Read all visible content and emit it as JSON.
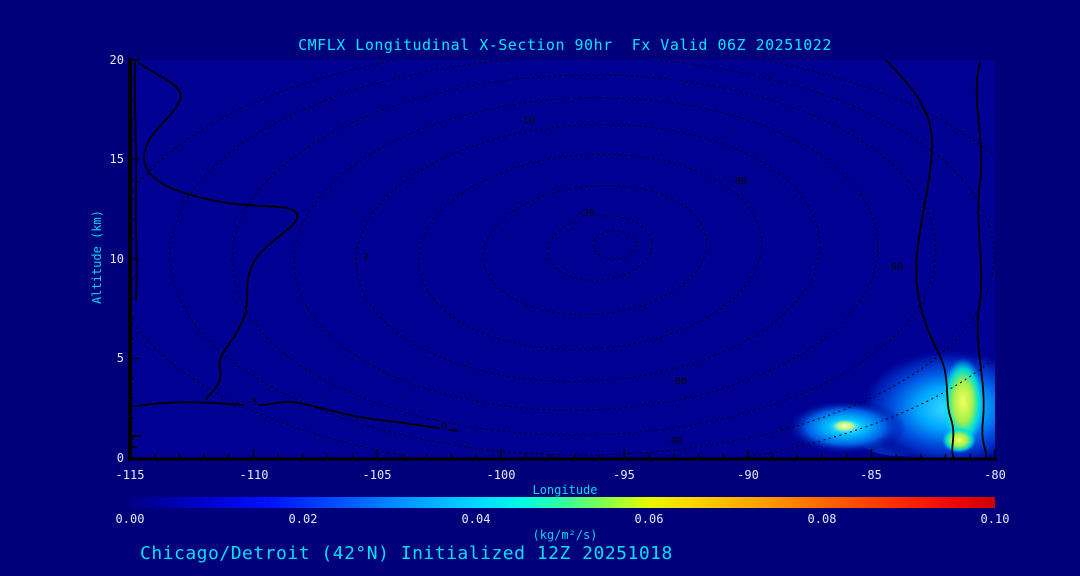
{
  "title": "CMFLX Longitudinal X-Section 90hr  Fx Valid 06Z 20251022",
  "caption": "Chicago/Detroit (42°N) Initialized 12Z 20251018",
  "axes": {
    "y_label": "Altitude (km)",
    "y_ticks": [
      "20",
      "15",
      "10",
      "5",
      "0"
    ],
    "x_label": "Longitude",
    "x_ticks": [
      "-115",
      "-110",
      "-105",
      "-100",
      "-95",
      "-90",
      "-85",
      "-80"
    ]
  },
  "colorbar": {
    "ticks": [
      "0.00",
      "0.02",
      "0.04",
      "0.06",
      "0.08",
      "0.10"
    ],
    "units_label": "(kg/m²/s)"
  },
  "contour_labels": [
    "-10",
    "-80",
    "-30",
    "-90",
    "2",
    "-80",
    "-3",
    "0",
    "-90"
  ],
  "colors": {
    "background": "#00007b",
    "plot_background": "#000092",
    "title_text": "#00e8ff",
    "tick_text": "#e8e8f8",
    "contour_line": "#000000",
    "colorbar_low": "#000085",
    "colorbar_mid": "#00d8ff",
    "colorbar_high": "#d00000"
  },
  "chart_data": {
    "type": "heatmap",
    "title": "CMFLX Longitudinal X-Section 90hr Fx Valid 06Z 20251022",
    "xlabel": "Longitude",
    "ylabel": "Altitude (km)",
    "xlim": [
      -115,
      -80
    ],
    "ylim": [
      0,
      20
    ],
    "grid": false,
    "colorbar": {
      "range": [
        0.0,
        0.1
      ],
      "ticks": [
        0.0,
        0.02,
        0.04,
        0.06,
        0.08,
        0.1
      ],
      "units": "kg/m²/s",
      "position": "bottom"
    },
    "contours": {
      "style": "dashed concentric contours spanning plot, solid contours near left and right edges and lower-left",
      "labeled_levels": [
        -90,
        -80,
        -30,
        -10,
        -3,
        0,
        2
      ]
    },
    "shaded_maxima": [
      {
        "lon": -80.8,
        "alt_km": 2.2,
        "peak_value": 0.06,
        "extent_lon": [
          -83.6,
          -80.0
        ],
        "extent_alt_km": [
          0.0,
          4.8
        ]
      },
      {
        "lon": -86.0,
        "alt_km": 1.4,
        "peak_value": 0.05,
        "extent_lon": [
          -88.0,
          -84.3
        ],
        "extent_alt_km": [
          0.3,
          2.4
        ]
      }
    ],
    "forecast_hour": 90,
    "valid": "06Z 20251022",
    "initialized": "12Z 20251018",
    "cross_section_latitude": "42°N (Chicago/Detroit)"
  }
}
